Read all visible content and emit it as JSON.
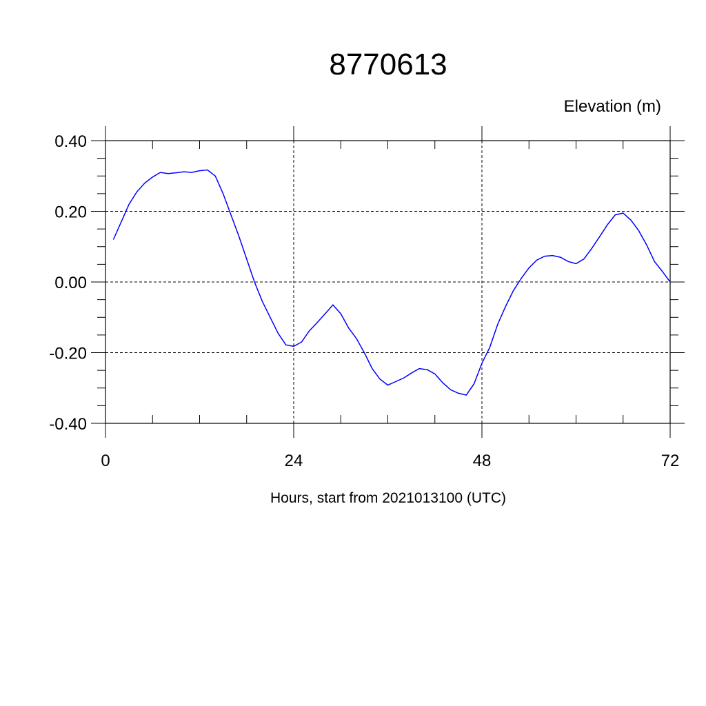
{
  "chart_data": {
    "type": "line",
    "title": "8770613",
    "units_label": "Elevation (m)",
    "xlabel": "Hours, start from 2021013100 (UTC)",
    "ylabel": "",
    "xlim": [
      0,
      72
    ],
    "ylim": [
      -0.4,
      0.4
    ],
    "x_ticks": [
      0,
      24,
      48,
      72
    ],
    "x_tick_labels": [
      "0",
      "24",
      "48",
      "72"
    ],
    "x_minor_step": 6,
    "y_ticks": [
      -0.4,
      -0.2,
      0.0,
      0.2,
      0.4
    ],
    "y_tick_labels": [
      "-0.40",
      "-0.20",
      "0.00",
      "0.20",
      "0.40"
    ],
    "y_minor_step": 0.05,
    "grid": true,
    "series": [
      {
        "color": "#0000ff",
        "x": [
          1,
          2,
          3,
          4,
          5,
          6,
          7,
          8,
          9,
          10,
          11,
          12,
          13,
          14,
          15,
          16,
          17,
          18,
          19,
          20,
          21,
          22,
          23,
          24,
          25,
          26,
          27,
          28,
          29,
          30,
          31,
          32,
          33,
          34,
          35,
          36,
          37,
          38,
          39,
          40,
          41,
          42,
          43,
          44,
          45,
          46,
          47,
          48,
          49,
          50,
          51,
          52,
          53,
          54,
          55,
          56,
          57,
          58,
          59,
          60,
          61,
          62,
          63,
          64,
          65,
          66,
          67,
          68,
          69,
          70,
          71,
          72
        ],
        "values": [
          0.12,
          0.17,
          0.22,
          0.255,
          0.28,
          0.297,
          0.31,
          0.307,
          0.309,
          0.312,
          0.31,
          0.315,
          0.317,
          0.3,
          0.25,
          0.19,
          0.13,
          0.065,
          0.0,
          -0.055,
          -0.1,
          -0.145,
          -0.178,
          -0.182,
          -0.17,
          -0.138,
          -0.115,
          -0.09,
          -0.065,
          -0.09,
          -0.13,
          -0.16,
          -0.2,
          -0.245,
          -0.275,
          -0.292,
          -0.282,
          -0.272,
          -0.258,
          -0.245,
          -0.248,
          -0.26,
          -0.285,
          -0.305,
          -0.315,
          -0.32,
          -0.288,
          -0.23,
          -0.185,
          -0.12,
          -0.07,
          -0.025,
          0.01,
          0.04,
          0.062,
          0.073,
          0.075,
          0.07,
          0.058,
          0.052,
          0.065,
          0.095,
          0.128,
          0.162,
          0.19,
          0.195,
          0.175,
          0.145,
          0.105,
          0.058,
          0.03,
          0.0
        ]
      }
    ]
  }
}
